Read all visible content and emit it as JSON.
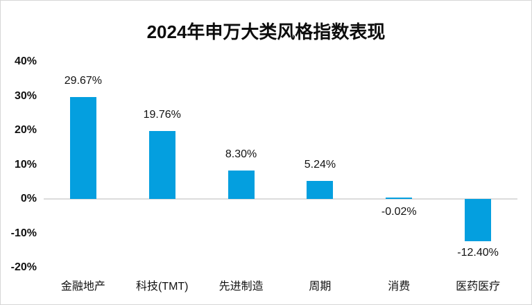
{
  "chart_data": {
    "type": "bar",
    "title": "2024年申万大类风格指数表现",
    "categories": [
      "金融地产",
      "科技(TMT)",
      "先进制造",
      "周期",
      "消费",
      "医药医疗"
    ],
    "values": [
      29.67,
      19.76,
      8.3,
      5.24,
      -0.02,
      -12.4
    ],
    "value_labels": [
      "29.67%",
      "19.76%",
      "8.30%",
      "5.24%",
      "-0.02%",
      "-12.40%"
    ],
    "y_ticks": [
      "40%",
      "30%",
      "20%",
      "10%",
      "0%",
      "-10%",
      "-20%"
    ],
    "ylim": [
      -20,
      40
    ],
    "xlabel": "",
    "ylabel": "",
    "grid": false,
    "legend": false,
    "bar_color": "#049fdf",
    "zero_line_color": "#dcdcdc",
    "text_color": "#111111",
    "border_color": "#d6d6d6"
  }
}
